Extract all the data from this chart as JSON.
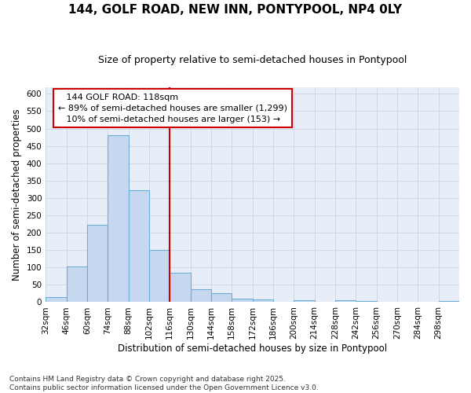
{
  "title": "144, GOLF ROAD, NEW INN, PONTYPOOL, NP4 0LY",
  "subtitle": "Size of property relative to semi-detached houses in Pontypool",
  "xlabel": "Distribution of semi-detached houses by size in Pontypool",
  "ylabel": "Number of semi-detached properties",
  "footnote": "Contains HM Land Registry data © Crown copyright and database right 2025.\nContains public sector information licensed under the Open Government Licence v3.0.",
  "bins": [
    32,
    46,
    60,
    74,
    88,
    102,
    116,
    130,
    144,
    158,
    172,
    186,
    200,
    214,
    228,
    242,
    256,
    270,
    284,
    298,
    312
  ],
  "counts": [
    15,
    103,
    222,
    481,
    322,
    150,
    84,
    38,
    25,
    10,
    7,
    0,
    5,
    0,
    5,
    4,
    0,
    0,
    0,
    3
  ],
  "bar_color": "#c5d8f0",
  "bar_edge_color": "#6aaed6",
  "grid_color": "#d0d8e8",
  "bg_color": "#e8eef8",
  "vline_x": 116,
  "vline_color": "#cc0000",
  "property_label": "144 GOLF ROAD: 118sqm",
  "smaller_pct": "89% of semi-detached houses are smaller (1,299)",
  "larger_pct": "10% of semi-detached houses are larger (153)",
  "ylim": [
    0,
    620
  ],
  "yticks": [
    0,
    50,
    100,
    150,
    200,
    250,
    300,
    350,
    400,
    450,
    500,
    550,
    600
  ],
  "title_fontsize": 11,
  "subtitle_fontsize": 9,
  "axis_label_fontsize": 8.5,
  "tick_fontsize": 7.5,
  "footnote_fontsize": 6.5,
  "annotation_fontsize": 8
}
